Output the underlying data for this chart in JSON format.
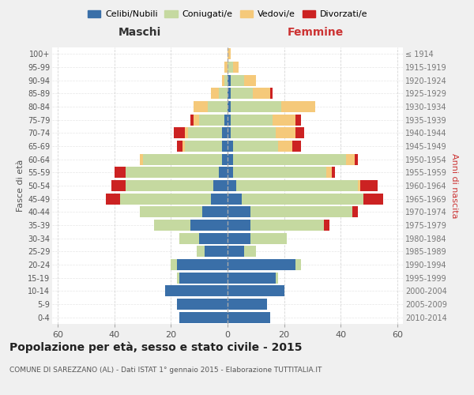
{
  "age_groups": [
    "0-4",
    "5-9",
    "10-14",
    "15-19",
    "20-24",
    "25-29",
    "30-34",
    "35-39",
    "40-44",
    "45-49",
    "50-54",
    "55-59",
    "60-64",
    "65-69",
    "70-74",
    "75-79",
    "80-84",
    "85-89",
    "90-94",
    "95-99",
    "100+"
  ],
  "birth_years": [
    "2010-2014",
    "2005-2009",
    "2000-2004",
    "1995-1999",
    "1990-1994",
    "1985-1989",
    "1980-1984",
    "1975-1979",
    "1970-1974",
    "1965-1969",
    "1960-1964",
    "1955-1959",
    "1950-1954",
    "1945-1949",
    "1940-1944",
    "1935-1939",
    "1930-1934",
    "1925-1929",
    "1920-1924",
    "1915-1919",
    "≤ 1914"
  ],
  "maschi": {
    "celibe": [
      17,
      18,
      22,
      17,
      18,
      8,
      10,
      13,
      9,
      6,
      5,
      3,
      2,
      2,
      2,
      1,
      0,
      0,
      0,
      0,
      0
    ],
    "coniugato": [
      0,
      0,
      0,
      1,
      2,
      3,
      7,
      13,
      22,
      32,
      31,
      33,
      28,
      13,
      12,
      9,
      7,
      3,
      1,
      0,
      0
    ],
    "vedovo": [
      0,
      0,
      0,
      0,
      0,
      0,
      0,
      0,
      0,
      0,
      0,
      0,
      1,
      1,
      1,
      2,
      5,
      3,
      1,
      1,
      0
    ],
    "divorziato": [
      0,
      0,
      0,
      0,
      0,
      0,
      0,
      0,
      0,
      5,
      5,
      4,
      0,
      2,
      4,
      1,
      0,
      0,
      0,
      0,
      0
    ]
  },
  "femmine": {
    "nubile": [
      15,
      14,
      20,
      17,
      24,
      6,
      8,
      8,
      8,
      5,
      3,
      2,
      2,
      2,
      1,
      1,
      1,
      1,
      1,
      0,
      0
    ],
    "coniugata": [
      0,
      0,
      0,
      1,
      2,
      4,
      13,
      26,
      36,
      43,
      43,
      33,
      40,
      16,
      16,
      15,
      18,
      8,
      5,
      2,
      0
    ],
    "vedova": [
      0,
      0,
      0,
      0,
      0,
      0,
      0,
      0,
      0,
      0,
      1,
      2,
      3,
      5,
      7,
      8,
      12,
      6,
      4,
      2,
      1
    ],
    "divorziata": [
      0,
      0,
      0,
      0,
      0,
      0,
      0,
      2,
      2,
      7,
      6,
      1,
      1,
      3,
      3,
      2,
      0,
      1,
      0,
      0,
      0
    ]
  },
  "colors": {
    "celibe": "#3a6fa8",
    "coniugato": "#c5d9a0",
    "vedovo": "#f5c97a",
    "divorziato": "#cc2222"
  },
  "legend_labels": [
    "Celibi/Nubili",
    "Coniugati/e",
    "Vedovi/e",
    "Divorzati/e"
  ],
  "xlim": 62,
  "title": "Popolazione per età, sesso e stato civile - 2015",
  "subtitle": "COMUNE DI SAREZZANO (AL) - Dati ISTAT 1° gennaio 2015 - Elaborazione TUTTITALIA.IT",
  "xlabel_left": "Maschi",
  "xlabel_right": "Femmine",
  "ylabel_left": "Fasce di età",
  "ylabel_right": "Anni di nascita",
  "bg_color": "#f0f0f0",
  "plot_bg_color": "#ffffff"
}
